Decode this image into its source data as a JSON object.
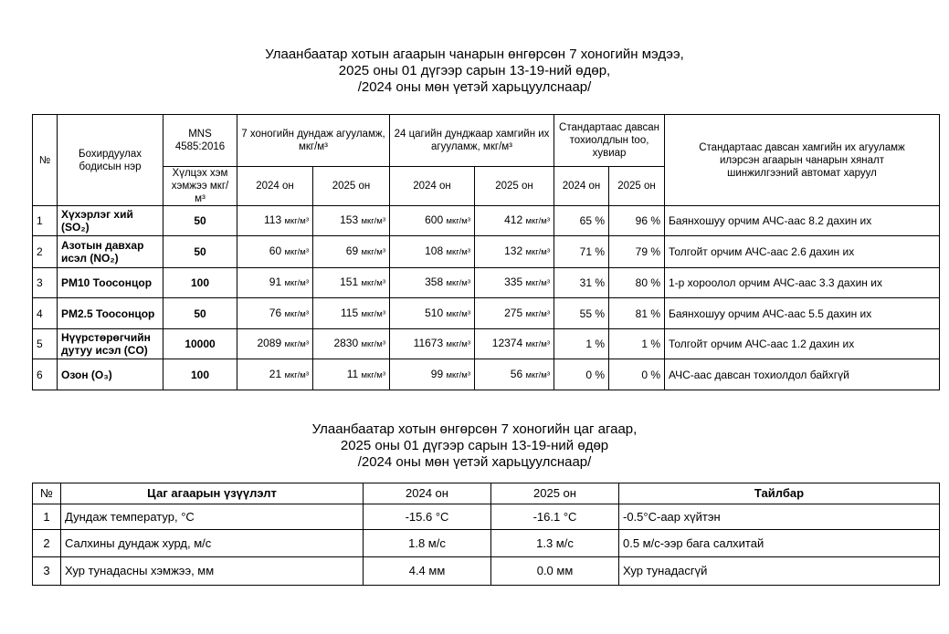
{
  "title1": [
    "Улаанбаатар хотын агаарын чанарын өнгөрсөн 7 хоногийн мэдээ,",
    "2025 оны 01 дүгээр сарын 13-19-ний өдөр,",
    "/2024 оны мөн үетэй харьцуулснаар/"
  ],
  "air_table": {
    "headers": {
      "no": "№",
      "name": "Бохирдуулах бодисын нэр",
      "mns": "MNS 4585:2016",
      "limit": "Хүлцэх хэм хэмжээ мкг/м³",
      "weekly_avg": "7 хоногийн дундаж агууламж, мкг/м³",
      "max24": "24 цагийн дунджаар хамгийн их агууламж, мкг/м³",
      "exceed": "Стандартаас давсан тохиолдлын too, хувиар",
      "y2024": "2024 он",
      "y2025": "2025 он",
      "station": "Стандартаас давсан хамгийн их агууламж илэрсэн агаарын чанарын хяналт шинжилгээний автомат харуул"
    },
    "unit": "мкг/м³",
    "rows": [
      {
        "no": "1",
        "name": "Хүхэрлэг хий (SO₂)",
        "limit": "50",
        "avg2024": "113",
        "avg2025": "153",
        "max2024": "600",
        "max2025": "412",
        "ex2024": "65 %",
        "ex2025": "96 %",
        "station": "Баянхошуу орчим АЧС-аас 8.2 дахин их"
      },
      {
        "no": "2",
        "name": "Азотын давхар исэл (NO₂)",
        "limit": "50",
        "avg2024": "60",
        "avg2025": "69",
        "max2024": "108",
        "max2025": "132",
        "ex2024": "71 %",
        "ex2025": "79 %",
        "station": "Толгойт орчим АЧС-аас 2.6 дахин их"
      },
      {
        "no": "3",
        "name": "PM10 Тоосонцор",
        "limit": "100",
        "avg2024": "91",
        "avg2025": "151",
        "max2024": "358",
        "max2025": "335",
        "ex2024": "31 %",
        "ex2025": "80 %",
        "station": "1-р хороолол орчим АЧС-аас 3.3 дахин их"
      },
      {
        "no": "4",
        "name": "PM2.5 Тоосонцор",
        "limit": "50",
        "avg2024": "76",
        "avg2025": "115",
        "max2024": "510",
        "max2025": "275",
        "ex2024": "55 %",
        "ex2025": "81 %",
        "station": "Баянхошуу орчим АЧС-аас 5.5 дахин их"
      },
      {
        "no": "5",
        "name": "Нүүрстөрөгчийн дутуу исэл  (CO)",
        "limit": "10000",
        "avg2024": "2089",
        "avg2025": "2830",
        "max2024": "11673",
        "max2025": "12374",
        "ex2024": "1 %",
        "ex2025": "1 %",
        "station": "Толгойт орчим АЧС-аас 1.2 дахин их"
      },
      {
        "no": "6",
        "name": "Озон (O₃)",
        "limit": "100",
        "avg2024": "21",
        "avg2025": "11",
        "max2024": "99",
        "max2025": "56",
        "ex2024": "0 %",
        "ex2025": "0 %",
        "station": "АЧС-аас давсан тохиолдол байхгүй"
      }
    ]
  },
  "title2": [
    "Улаанбаатар хотын өнгөрсөн 7 хоногийн цаг агаар,",
    "2025 оны 01 дүгээр сарын 13-19-ний өдөр",
    "/2024 оны мөн үетэй харьцуулснаар/"
  ],
  "weather_table": {
    "headers": {
      "no": "№",
      "indicator": "Цаг агаарын үзүүлэлт",
      "y2024": "2024 он",
      "y2025": "2025 он",
      "note": "Тайлбар"
    },
    "rows": [
      {
        "no": "1",
        "indicator": "Дундаж температур, °C",
        "v2024": "-15.6 °C",
        "v2025": "-16.1 °C",
        "note": "-0.5°C-аар хүйтэн"
      },
      {
        "no": "2",
        "indicator": "Салхины дундаж хурд, м/с",
        "v2024": "1.8 м/с",
        "v2025": "1.3 м/с",
        "note": "0.5 м/с-ээр бага салхитай"
      },
      {
        "no": "3",
        "indicator": "Хур тунадасны хэмжээ, мм",
        "v2024": "4.4 мм",
        "v2025": "0.0 мм",
        "note": "Хур тунадасгүй"
      }
    ]
  }
}
